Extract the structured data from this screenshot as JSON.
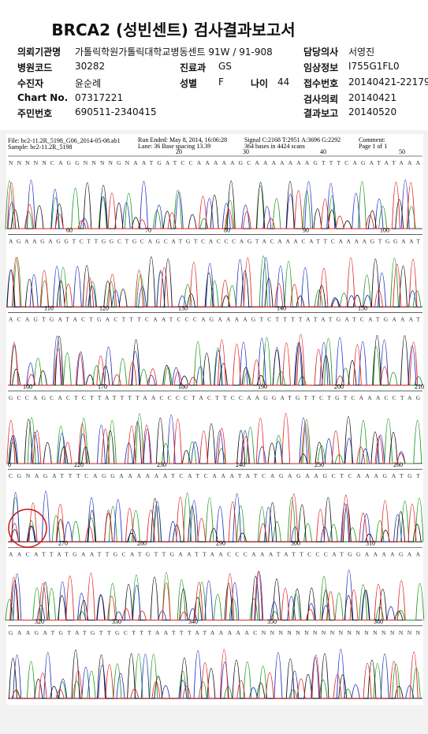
{
  "header": {
    "title": "BRCA2 (성빈센트) 검사결과보고서",
    "rows": [
      [
        [
          "의뢰기관명",
          "가톨릭학원가톨릭대학교병동센트 91W / 91-908"
        ],
        [
          "담당의사",
          "서영진"
        ]
      ],
      [
        [
          "병원코드",
          "30282"
        ],
        [
          "진료과",
          "GS"
        ],
        [
          "임상정보",
          "I755G1FL0"
        ]
      ],
      [
        [
          "수진자",
          "윤순례"
        ],
        [
          "성별",
          "F"
        ],
        [
          "나이",
          "44"
        ],
        [
          "접수번호",
          "20140421-22179"
        ]
      ],
      [
        [
          "Chart No.",
          "07317221"
        ],
        [
          "검사의뢰",
          "20140421"
        ]
      ],
      [
        [
          "주민번호",
          "690511-2340415"
        ],
        [
          "결과보고",
          "20140520"
        ]
      ]
    ]
  },
  "trace": {
    "info": [
      "File: bc2-11.2R_5198_G06_2014-05-08.ab1",
      "Sample: bc2-11.2R_5198",
      "Run Ended: May 8, 2014, 16:06:28",
      "Lane: 36  Base spacing 13.39",
      "Signal C:2168 T:2951 A:3696 G:2292",
      "364 bases in 4424 scans",
      "Comment:",
      "Page 1 of 1"
    ],
    "rows": [
      {
        "ruler": [
          "20",
          "30",
          "40",
          "50"
        ],
        "sequence": "NNNNNCAGGNNNNGNAATGATCCAAAAAGCAAAAAAAGTTTCAGATATAAA"
      },
      {
        "ruler": [
          "60",
          "70",
          "80",
          "90",
          "100"
        ],
        "sequence": "AGAAGAGGTCTTGGCTGCAGCATGTCACCCAGTACAAACATTCAAAAGTGGAAT"
      },
      {
        "ruler": [
          "110",
          "120",
          "130",
          "140",
          "150"
        ],
        "sequence": "ACAGTGATACTGACTTTCAATCCCAGAAAAGTCTTTTATATGATCATGAAAT"
      },
      {
        "ruler": [
          "160",
          "170",
          "180",
          "190",
          "200",
          "210"
        ],
        "sequence": "GCCAGCACTCTTATTTTAACCCCTACTTCCAAGGATGTTCTGTCAAACCTAG"
      },
      {
        "ruler": [
          "0",
          "220",
          "230",
          "240",
          "250",
          "260"
        ],
        "sequence": "CGNAGATTTCAGGAAAAAATCATCAAATATCAGAGAAGCTCAAAGATGT"
      },
      {
        "ruler": [
          "270",
          "280",
          "290",
          "300",
          "310"
        ],
        "sequence": "AACATTATGAATTGCATGTTGAATTAACCCAAATATTCCCATGGAAAAGAA"
      },
      {
        "ruler": [
          "320",
          "330",
          "340",
          "350",
          "360"
        ],
        "sequence": "GAAGATGTATGTTGCTTTAATTTATAAAAACNNNNNNNNNNNNNNNNNNN"
      }
    ]
  }
}
